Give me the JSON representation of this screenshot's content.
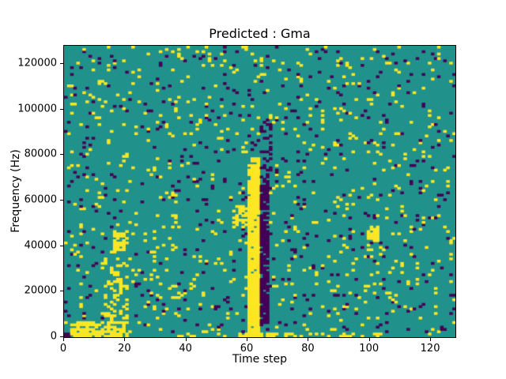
{
  "figure": {
    "kind": "matplotlib-figure",
    "background": "#ffffff"
  },
  "chart_data": {
    "type": "heatmap",
    "title": "Predicted : Gma",
    "xlabel": "Time step",
    "ylabel": "Frequency (Hz)",
    "xlim": [
      0,
      128
    ],
    "ylim": [
      0,
      128000
    ],
    "xticks": [
      0,
      20,
      40,
      60,
      80,
      100,
      120
    ],
    "yticks": [
      0,
      20000,
      40000,
      60000,
      80000,
      100000,
      120000
    ],
    "grid": false,
    "legend": "none",
    "n_cols": 128,
    "n_rows": 128,
    "row_height_hz": 1000,
    "colormap": {
      "name": "viridis-ternary",
      "background_mid": "#21918c",
      "spike_high": "#fde725",
      "spike_low": "#440154"
    },
    "features": [
      {
        "desc": "dense yellow blob bottom-left low frequencies",
        "cols": [
          2,
          20
        ],
        "rows": [
          0,
          6
        ],
        "value": 1,
        "density": 0.7
      },
      {
        "desc": "purple patch bottom-left corner",
        "cols": [
          0,
          9
        ],
        "rows": [
          0,
          1
        ],
        "value": -1,
        "density": 0.7
      },
      {
        "desc": "sparse rising yellow streak",
        "cols": [
          13,
          20
        ],
        "rows": [
          7,
          37
        ],
        "value": 1,
        "density": 0.22
      },
      {
        "desc": "yellow knot near 40000 Hz",
        "cols": [
          16,
          20
        ],
        "rows": [
          38,
          46
        ],
        "value": 1,
        "density": 0.55
      },
      {
        "desc": "main solid yellow vertical band t=60-63 up to ~78000 Hz",
        "cols": [
          60,
          63
        ],
        "rows": [
          0,
          78
        ],
        "value": 1,
        "density": 0.93
      },
      {
        "desc": "dark purple vertical band t=64-66",
        "cols": [
          64,
          66
        ],
        "rows": [
          5,
          70
        ],
        "value": -1,
        "density": 0.85
      },
      {
        "desc": "sparse purple continuation above band",
        "cols": [
          64,
          67
        ],
        "rows": [
          71,
          95
        ],
        "value": -1,
        "density": 0.25
      },
      {
        "desc": "yellow patch left of main band near 50000 Hz",
        "cols": [
          55,
          59
        ],
        "rows": [
          48,
          57
        ],
        "value": 1,
        "density": 0.55
      },
      {
        "desc": "yellow blob right side near 45000 Hz",
        "cols": [
          99,
          102
        ],
        "rows": [
          42,
          48
        ],
        "value": 1,
        "density": 0.75
      },
      {
        "desc": "bottom yellow band center",
        "cols": [
          57,
          76
        ],
        "rows": [
          0,
          1
        ],
        "value": 1,
        "density": 0.7
      },
      {
        "desc": "bottom yellow band right",
        "cols": [
          80,
          104
        ],
        "rows": [
          0,
          1
        ],
        "value": 1,
        "density": 0.45
      },
      {
        "desc": "bottom sparse yellow left-center",
        "cols": [
          36,
          52
        ],
        "rows": [
          0,
          1
        ],
        "value": 1,
        "density": 0.3
      }
    ],
    "scatter": {
      "desc": "random isolated single-cell spikes over whole field",
      "seed": 7,
      "p_yellow": 0.042,
      "p_purple": 0.032
    }
  }
}
